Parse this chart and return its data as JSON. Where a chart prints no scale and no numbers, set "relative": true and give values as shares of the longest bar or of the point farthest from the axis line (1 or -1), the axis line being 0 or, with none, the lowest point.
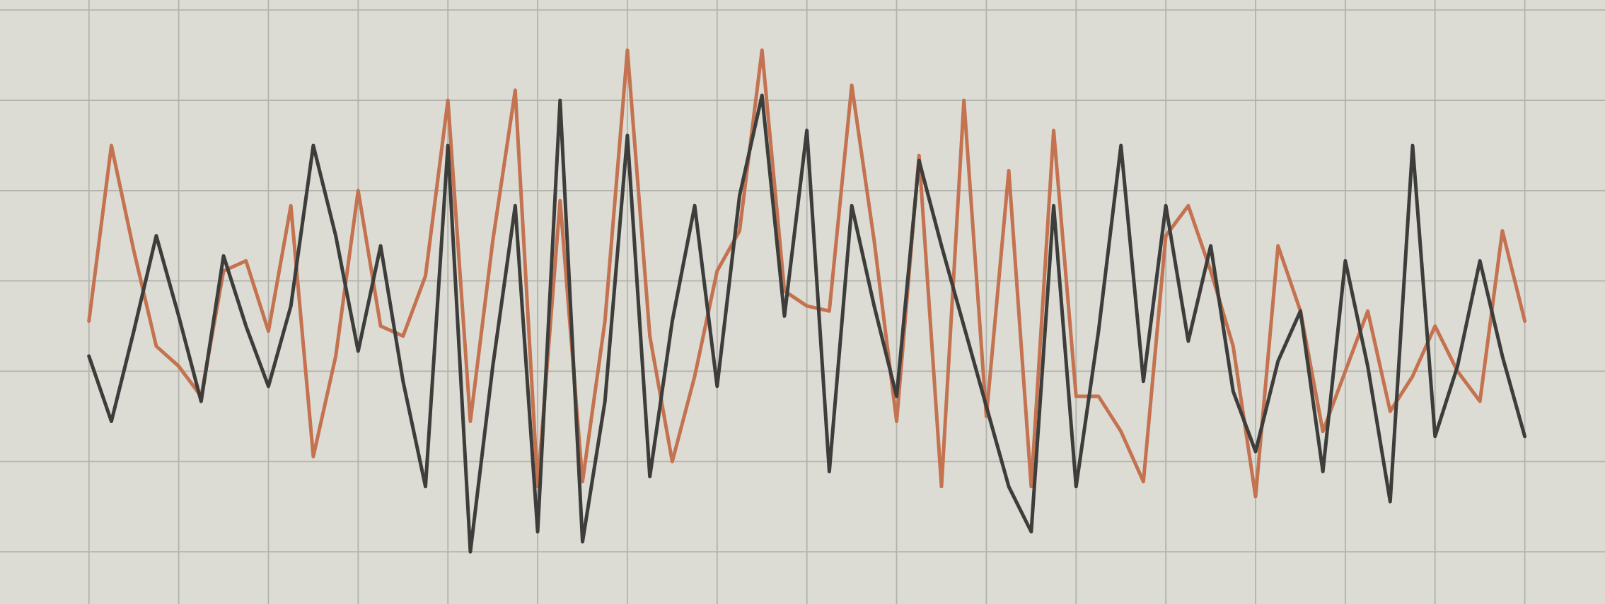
{
  "chart_data": {
    "type": "line",
    "relative": true,
    "grid": true,
    "line_style": "solid",
    "marker": "none",
    "categories": [
      null,
      null,
      null,
      null,
      null,
      null,
      null,
      null,
      null,
      null,
      null,
      null,
      null,
      null,
      null,
      null,
      null,
      null,
      null,
      null,
      null,
      null,
      null,
      null,
      null,
      null,
      null,
      null,
      null,
      null,
      null,
      null,
      null,
      null,
      null,
      null,
      null,
      null,
      null,
      null,
      null,
      null,
      null,
      null,
      null,
      null,
      null,
      null,
      null,
      null,
      null,
      null,
      null,
      null,
      null,
      null,
      null,
      null,
      null,
      null,
      null,
      null,
      null,
      null,
      null
    ],
    "series": [
      {
        "color": "#c4724f",
        "values": [
          0.46,
          0.81,
          0.6,
          0.41,
          0.37,
          0.31,
          0.56,
          0.58,
          0.44,
          0.69,
          0.19,
          0.39,
          0.72,
          0.45,
          0.43,
          0.55,
          0.9,
          0.26,
          0.62,
          0.92,
          0.13,
          0.7,
          0.14,
          0.46,
          1.0,
          0.43,
          0.18,
          0.35,
          0.56,
          0.64,
          1.0,
          0.52,
          0.49,
          0.48,
          0.93,
          0.62,
          0.26,
          0.79,
          0.13,
          0.9,
          0.27,
          0.76,
          0.13,
          0.84,
          0.31,
          0.31,
          0.24,
          0.14,
          0.63,
          0.69,
          0.56,
          0.41,
          0.11,
          0.61,
          0.48,
          0.24,
          0.36,
          0.48,
          0.28,
          0.35,
          0.45,
          0.36,
          0.3,
          0.64,
          0.46
        ]
      },
      {
        "color": "#3d3d3b",
        "values": [
          0.39,
          0.26,
          0.44,
          0.63,
          0.47,
          0.3,
          0.59,
          0.45,
          0.33,
          0.49,
          0.81,
          0.63,
          0.4,
          0.61,
          0.34,
          0.13,
          0.81,
          0,
          0.37,
          0.69,
          0.04,
          0.9,
          0.02,
          0.3,
          0.83,
          0.15,
          0.46,
          0.69,
          0.33,
          0.71,
          0.91,
          0.47,
          0.84,
          0.16,
          0.69,
          0.49,
          0.31,
          0.78,
          0.61,
          0.45,
          0.29,
          0.13,
          0.04,
          0.69,
          0.13,
          0.44,
          0.81,
          0.34,
          0.69,
          0.42,
          0.61,
          0.32,
          0.2,
          0.38,
          0.48,
          0.16,
          0.58,
          0.37,
          0.1,
          0.81,
          0.23,
          0.37,
          0.58,
          0.39,
          0.23
        ]
      }
    ]
  }
}
